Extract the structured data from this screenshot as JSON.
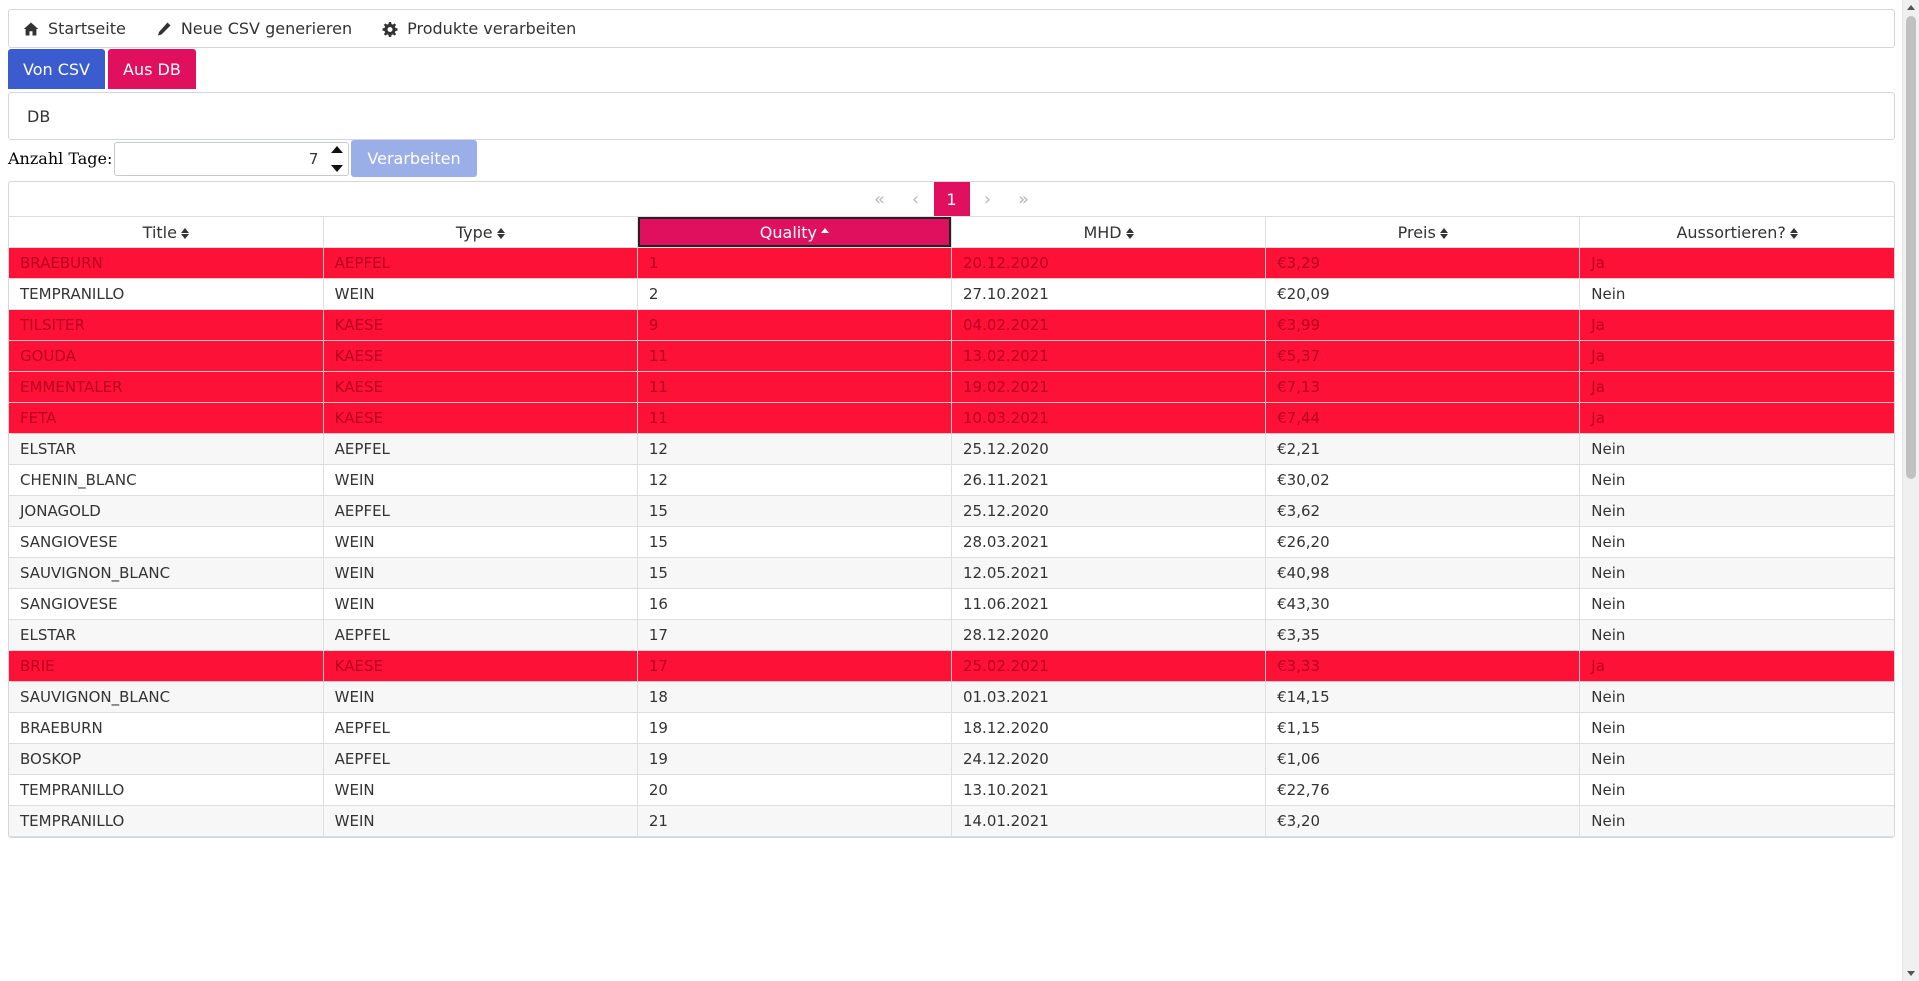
{
  "nav": {
    "items": [
      {
        "label": "Startseite",
        "icon": "home-icon"
      },
      {
        "label": "Neue CSV generieren",
        "icon": "pencil-icon"
      },
      {
        "label": "Produkte verarbeiten",
        "icon": "gear-icon"
      }
    ]
  },
  "tabs": {
    "csv_label": "Von CSV",
    "db_label": "Aus DB"
  },
  "panel": {
    "text": "DB"
  },
  "form": {
    "days_label": "Anzahl Tage:",
    "days_value": "7",
    "process_label": "Verarbeiten"
  },
  "pagination": {
    "first": "«",
    "prev": "‹",
    "current": "1",
    "next": "›",
    "last": "»"
  },
  "colors": {
    "accent": "#e0105f",
    "primary": "#3a5ccf",
    "flag_row": "#fe1136"
  },
  "table": {
    "columns": [
      "Title",
      "Type",
      "Quality",
      "MHD",
      "Preis",
      "Aussortieren?"
    ],
    "sorted_column": "Quality",
    "sort_direction": "asc",
    "rows": [
      {
        "title": "BRAEBURN",
        "type": "AEPFEL",
        "quality": "1",
        "mhd": "20.12.2020",
        "preis": "€3,29",
        "aussortieren": "Ja"
      },
      {
        "title": "TEMPRANILLO",
        "type": "WEIN",
        "quality": "2",
        "mhd": "27.10.2021",
        "preis": "€20,09",
        "aussortieren": "Nein"
      },
      {
        "title": "TILSITER",
        "type": "KAESE",
        "quality": "9",
        "mhd": "04.02.2021",
        "preis": "€3,99",
        "aussortieren": "Ja"
      },
      {
        "title": "GOUDA",
        "type": "KAESE",
        "quality": "11",
        "mhd": "13.02.2021",
        "preis": "€5,37",
        "aussortieren": "Ja"
      },
      {
        "title": "EMMENTALER",
        "type": "KAESE",
        "quality": "11",
        "mhd": "19.02.2021",
        "preis": "€7,13",
        "aussortieren": "Ja"
      },
      {
        "title": "FETA",
        "type": "KAESE",
        "quality": "11",
        "mhd": "10.03.2021",
        "preis": "€7,44",
        "aussortieren": "Ja"
      },
      {
        "title": "ELSTAR",
        "type": "AEPFEL",
        "quality": "12",
        "mhd": "25.12.2020",
        "preis": "€2,21",
        "aussortieren": "Nein"
      },
      {
        "title": "CHENIN_BLANC",
        "type": "WEIN",
        "quality": "12",
        "mhd": "26.11.2021",
        "preis": "€30,02",
        "aussortieren": "Nein"
      },
      {
        "title": "JONAGOLD",
        "type": "AEPFEL",
        "quality": "15",
        "mhd": "25.12.2020",
        "preis": "€3,62",
        "aussortieren": "Nein"
      },
      {
        "title": "SANGIOVESE",
        "type": "WEIN",
        "quality": "15",
        "mhd": "28.03.2021",
        "preis": "€26,20",
        "aussortieren": "Nein"
      },
      {
        "title": "SAUVIGNON_BLANC",
        "type": "WEIN",
        "quality": "15",
        "mhd": "12.05.2021",
        "preis": "€40,98",
        "aussortieren": "Nein"
      },
      {
        "title": "SANGIOVESE",
        "type": "WEIN",
        "quality": "16",
        "mhd": "11.06.2021",
        "preis": "€43,30",
        "aussortieren": "Nein"
      },
      {
        "title": "ELSTAR",
        "type": "AEPFEL",
        "quality": "17",
        "mhd": "28.12.2020",
        "preis": "€3,35",
        "aussortieren": "Nein"
      },
      {
        "title": "BRIE",
        "type": "KAESE",
        "quality": "17",
        "mhd": "25.02.2021",
        "preis": "€3,33",
        "aussortieren": "Ja"
      },
      {
        "title": "SAUVIGNON_BLANC",
        "type": "WEIN",
        "quality": "18",
        "mhd": "01.03.2021",
        "preis": "€14,15",
        "aussortieren": "Nein"
      },
      {
        "title": "BRAEBURN",
        "type": "AEPFEL",
        "quality": "19",
        "mhd": "18.12.2020",
        "preis": "€1,15",
        "aussortieren": "Nein"
      },
      {
        "title": "BOSKOP",
        "type": "AEPFEL",
        "quality": "19",
        "mhd": "24.12.2020",
        "preis": "€1,06",
        "aussortieren": "Nein"
      },
      {
        "title": "TEMPRANILLO",
        "type": "WEIN",
        "quality": "20",
        "mhd": "13.10.2021",
        "preis": "€22,76",
        "aussortieren": "Nein"
      },
      {
        "title": "TEMPRANILLO",
        "type": "WEIN",
        "quality": "21",
        "mhd": "14.01.2021",
        "preis": "€3,20",
        "aussortieren": "Nein"
      }
    ]
  }
}
